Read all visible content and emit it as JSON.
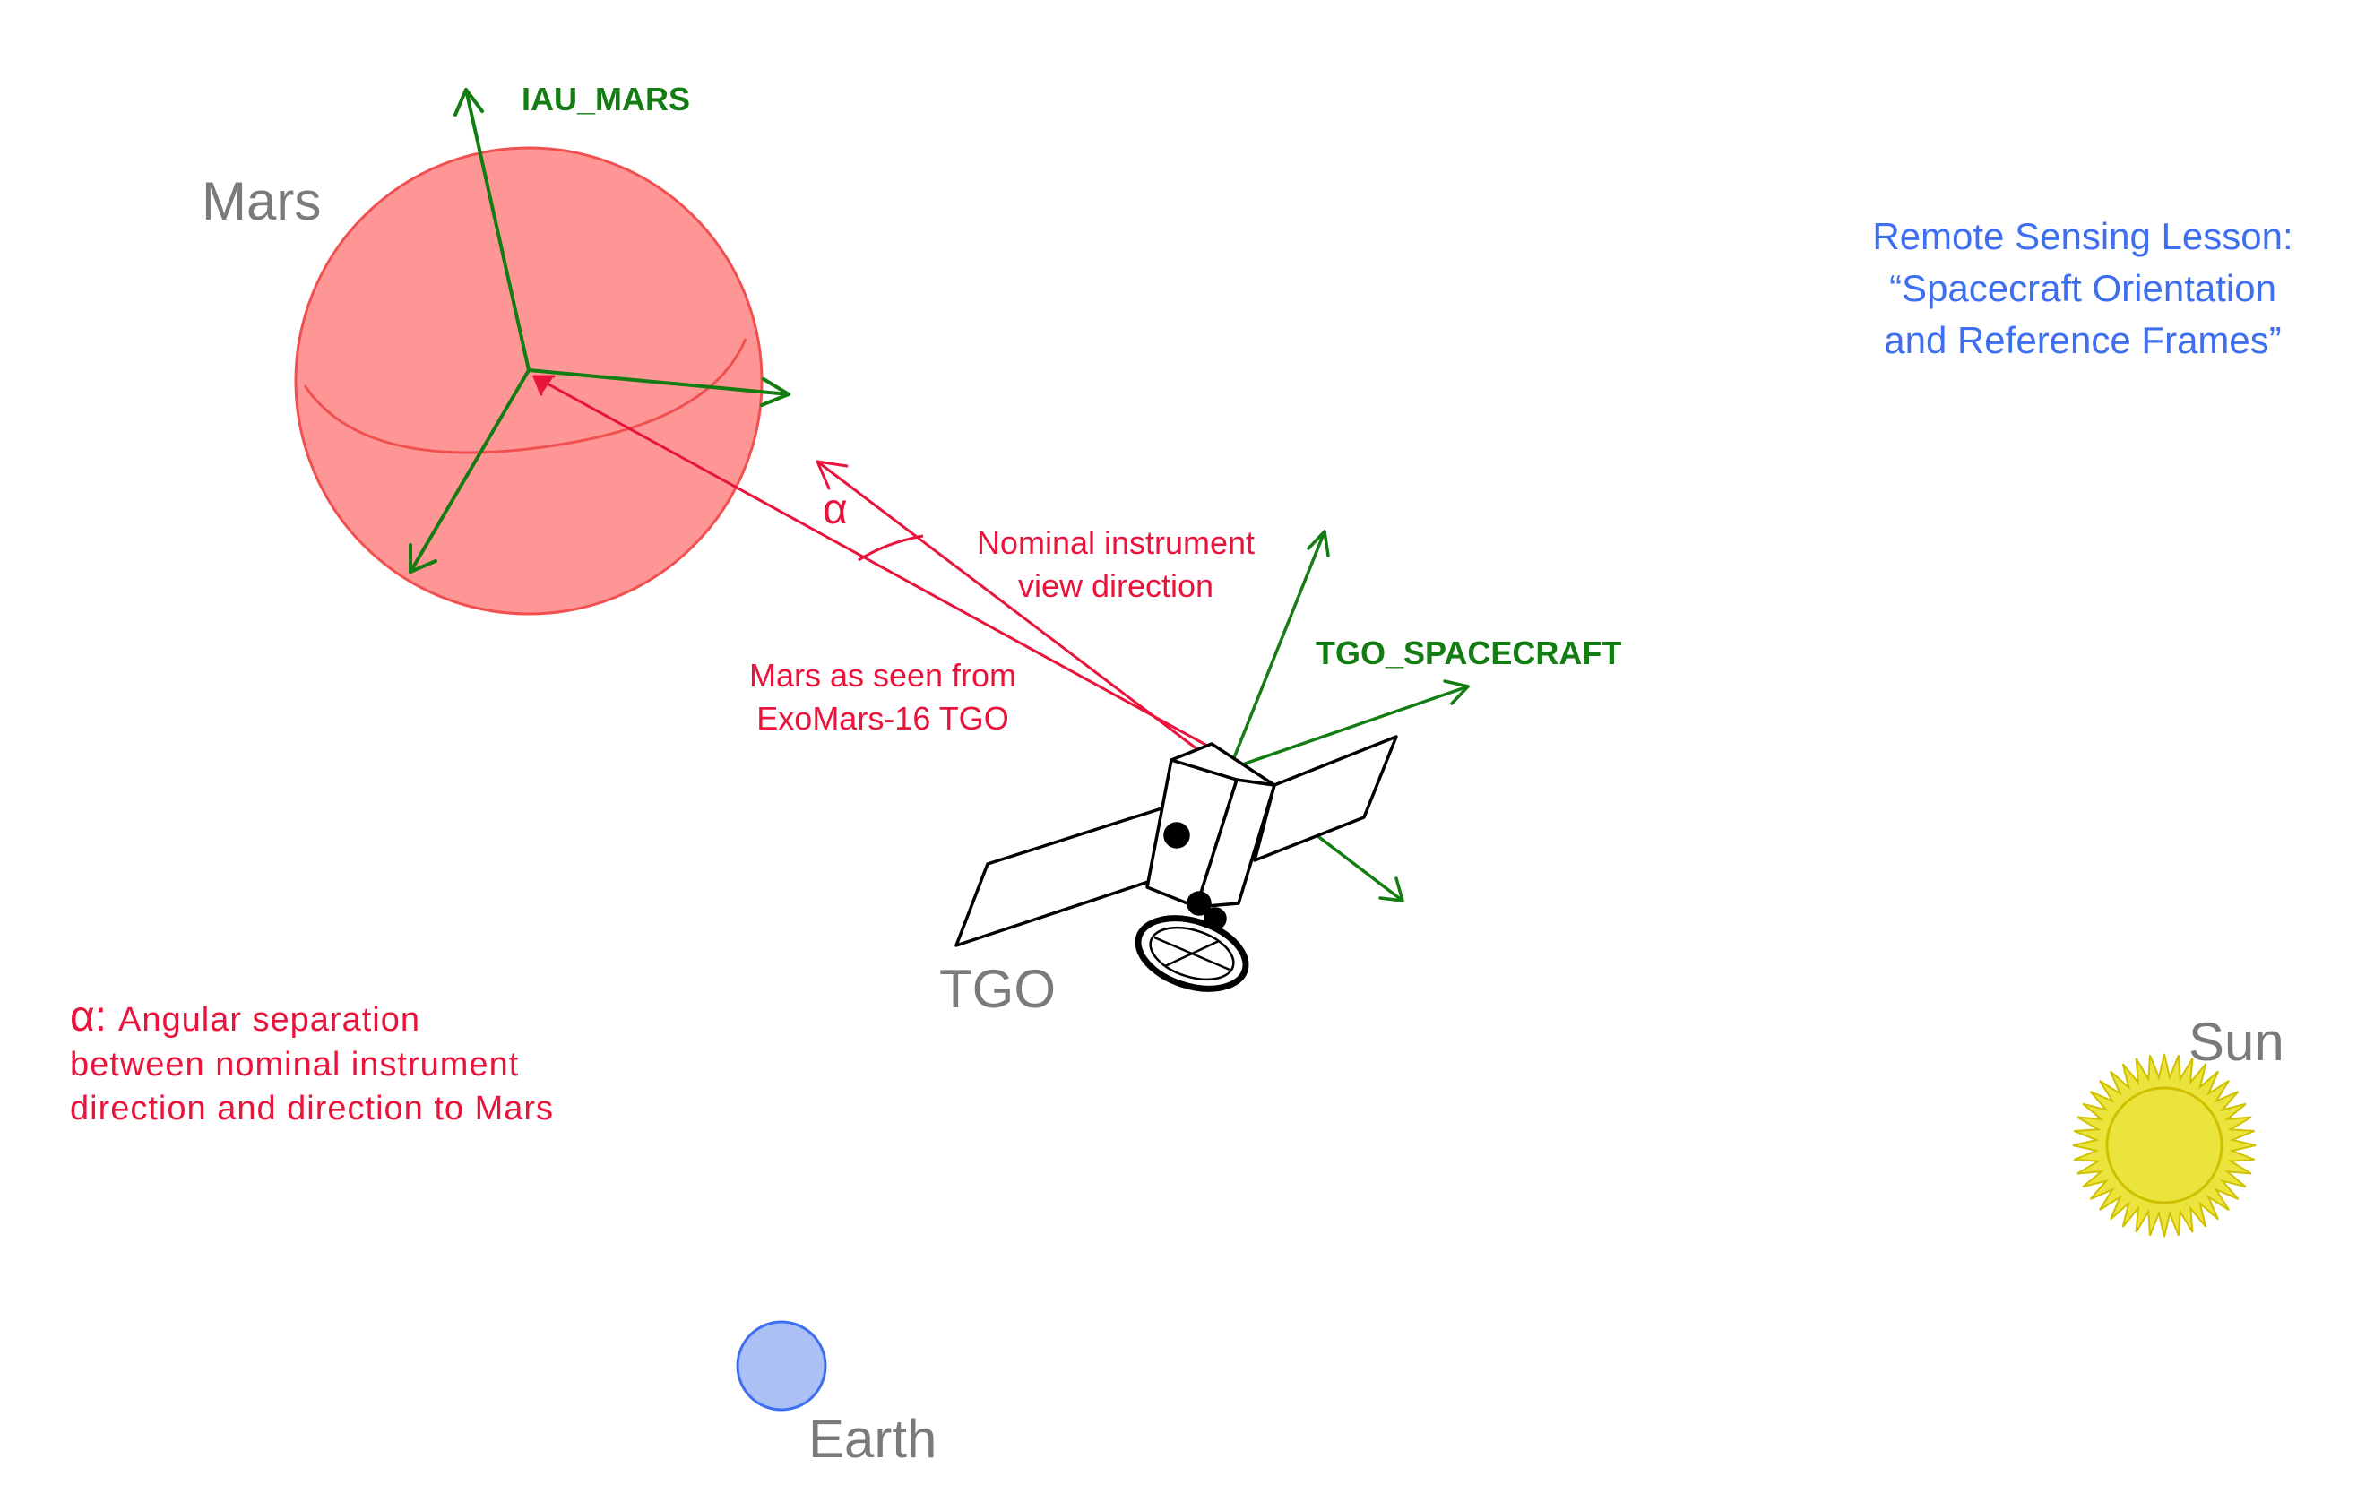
{
  "colors": {
    "frame_green": "#137d13",
    "annotation_red": "#e8143c",
    "body_grey": "#7a7a7a",
    "title_blue": "#3d6ff0",
    "mars_fill": "#ff9696",
    "mars_edge": "#f0504f",
    "earth_fill": "#abc0f5",
    "earth_edge": "#3d6ff0",
    "sun_fill": "#ebe43c",
    "sun_edge": "#cfc000"
  },
  "labels": {
    "mars": "Mars",
    "iau_mars": "IAU_MARS",
    "tgo": "TGO",
    "tgo_spacecraft": "TGO_SPACECRAFT",
    "earth": "Earth",
    "sun": "Sun",
    "alpha": "α",
    "nominal_view_line1": "Nominal instrument",
    "nominal_view_line2": "view direction",
    "mars_seen_line1": "Mars as seen from",
    "mars_seen_line2": "ExoMars-16 TGO"
  },
  "title": {
    "line1": "Remote Sensing Lesson:",
    "line2": "“Spacecraft Orientation",
    "line3": "and Reference Frames”"
  },
  "legend": {
    "symbol": "α:",
    "line1": "Angular separation",
    "line2": "between nominal instrument",
    "line3": "direction and direction to Mars"
  },
  "icons": {
    "mars": "planet-sphere",
    "earth": "planet-circle",
    "sun": "sun-star",
    "spacecraft": "satellite"
  }
}
